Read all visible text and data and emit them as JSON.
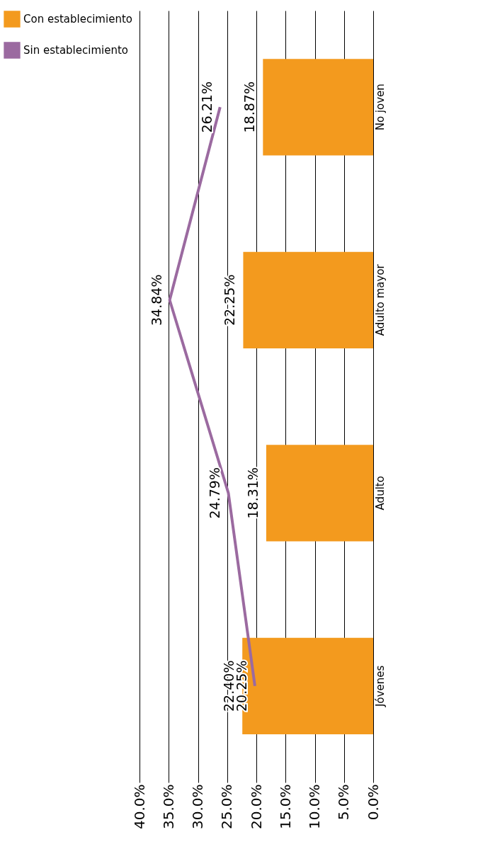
{
  "chart_data": {
    "type": "bar",
    "orientation": "horizontal",
    "categories": [
      "No joven",
      "Adulto mayor",
      "Adulto",
      "Jóvenes"
    ],
    "series": [
      {
        "name": "Con establecimiento",
        "type": "bar",
        "color": "#f39a1e",
        "values": [
          18.87,
          22.25,
          18.31,
          22.4
        ],
        "value_labels": [
          "18.87%",
          "22.25%",
          "18.31%",
          "22.40%"
        ]
      },
      {
        "name": "Sin establecimiento",
        "type": "line",
        "color": "#9b6aa0",
        "values": [
          26.21,
          34.84,
          24.79,
          20.25
        ],
        "value_labels": [
          "26.21%",
          "34.84%",
          "24.79%",
          "20.25%"
        ]
      }
    ],
    "xlim": [
      40,
      0
    ],
    "xticks": [
      {
        "value": 40,
        "label": "40.0%"
      },
      {
        "value": 35,
        "label": "35.0%"
      },
      {
        "value": 30,
        "label": "30.0%"
      },
      {
        "value": 25,
        "label": "25.0%"
      },
      {
        "value": 20,
        "label": "20.0%"
      },
      {
        "value": 15,
        "label": "15.0%"
      },
      {
        "value": 10,
        "label": "10.0%"
      },
      {
        "value": 5,
        "label": "5.0%"
      },
      {
        "value": 0,
        "label": "0.0%"
      }
    ],
    "grid": "x",
    "legend": "left",
    "marker": "none",
    "line_style": "solid"
  }
}
